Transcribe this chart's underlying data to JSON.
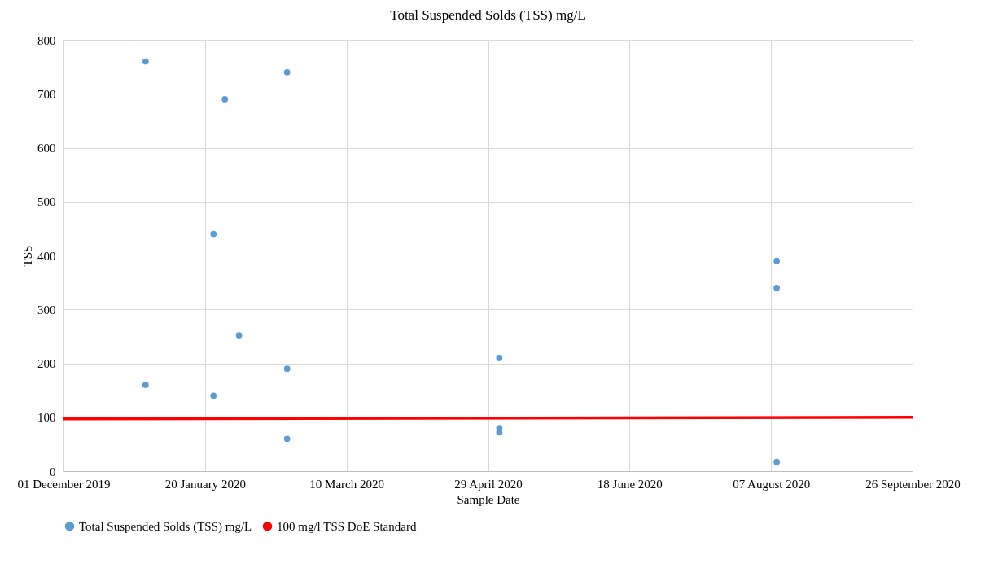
{
  "chart_data": {
    "type": "scatter",
    "title": "Total Suspended Solds (TSS) mg/L",
    "xlabel": "Sample Date",
    "ylabel": "TSS",
    "xlim": [
      "2019-12-01",
      "2020-09-26"
    ],
    "xticks": [
      {
        "value": "2019-12-01",
        "label": "01 December 2019"
      },
      {
        "value": "2020-01-20",
        "label": "20 January 2020"
      },
      {
        "value": "2020-03-10",
        "label": "10 March 2020"
      },
      {
        "value": "2020-04-29",
        "label": "29 April 2020"
      },
      {
        "value": "2020-06-18",
        "label": "18 June 2020"
      },
      {
        "value": "2020-08-07",
        "label": "07 August 2020"
      },
      {
        "value": "2020-09-26",
        "label": "26 September 2020"
      }
    ],
    "ylim": [
      0,
      800
    ],
    "yticks": [
      0,
      100,
      200,
      300,
      400,
      500,
      600,
      700,
      800
    ],
    "grid": true,
    "legend": "bottom",
    "series": [
      {
        "name": "Total Suspended Solds (TSS) mg/L",
        "color": "#5b9bd5",
        "x": [
          "2019-12-30",
          "2019-12-30",
          "2020-01-23",
          "2020-01-23",
          "2020-01-27",
          "2020-02-01",
          "2020-02-18",
          "2020-02-18",
          "2020-02-18",
          "2020-05-03",
          "2020-05-03",
          "2020-05-03",
          "2020-08-09",
          "2020-08-09",
          "2020-08-09"
        ],
        "values": [
          760,
          160,
          440,
          140,
          690,
          252,
          740,
          190,
          60,
          210,
          80,
          72,
          390,
          340,
          17
        ]
      },
      {
        "name": "100 mg/l TSS DoE Standard",
        "type": "line",
        "color": "#ff0000",
        "x": [
          "2019-12-01",
          "2020-09-26"
        ],
        "values": [
          97,
          100
        ]
      }
    ]
  }
}
